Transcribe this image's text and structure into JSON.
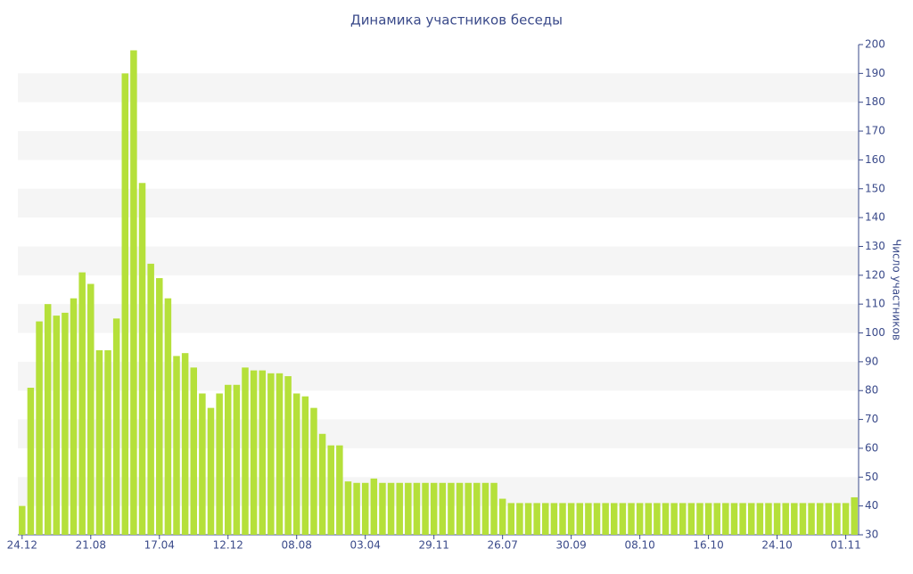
{
  "chart_data": {
    "type": "bar",
    "title": "Динамика участников беседы",
    "y_label": "Число участников",
    "categories": [
      "24.12",
      null,
      null,
      null,
      null,
      null,
      null,
      null,
      "21.08",
      null,
      null,
      null,
      null,
      null,
      null,
      null,
      "17.04",
      null,
      null,
      null,
      null,
      null,
      null,
      null,
      "12.12",
      null,
      null,
      null,
      null,
      null,
      null,
      null,
      "08.08",
      null,
      null,
      null,
      null,
      null,
      null,
      null,
      "03.04",
      null,
      null,
      null,
      null,
      null,
      null,
      null,
      "29.11",
      null,
      null,
      null,
      null,
      null,
      null,
      null,
      "26.07",
      null,
      null,
      null,
      null,
      null,
      null,
      null,
      "30.09",
      null,
      null,
      null,
      null,
      null,
      null,
      null,
      "08.10",
      null,
      null,
      null,
      null,
      null,
      null,
      null,
      "16.10",
      null,
      null,
      null,
      null,
      null,
      null,
      null,
      "24.10",
      null,
      null,
      null,
      null,
      null,
      null,
      null,
      "01.11",
      null
    ],
    "values": [
      40,
      81,
      104,
      110,
      106,
      107,
      112,
      121,
      117,
      94,
      94,
      105,
      190,
      198,
      152,
      124,
      119,
      112,
      92,
      93,
      88,
      79,
      74,
      79,
      82,
      82,
      88,
      87,
      87,
      86,
      86,
      85,
      79,
      78,
      74,
      65,
      61,
      61,
      48.5,
      48,
      48,
      49.5,
      48,
      48,
      48,
      48,
      48,
      48,
      48,
      48,
      48,
      48,
      48,
      48,
      48,
      48,
      42.5,
      41,
      41,
      41,
      41,
      41,
      41,
      41,
      41,
      41,
      41,
      41,
      41,
      41,
      41,
      41,
      41,
      41,
      41,
      41,
      41,
      41,
      41,
      41,
      41,
      41,
      41,
      41,
      41,
      41,
      41,
      41,
      41,
      41,
      41,
      41,
      41,
      41,
      41,
      41,
      41,
      43
    ],
    "color": "#b5e03a",
    "ylim": [
      30,
      200
    ],
    "yticks": [
      30,
      40,
      50,
      60,
      70,
      80,
      90,
      100,
      110,
      120,
      130,
      140,
      150,
      160,
      170,
      180,
      190,
      200
    ],
    "grid": true
  }
}
